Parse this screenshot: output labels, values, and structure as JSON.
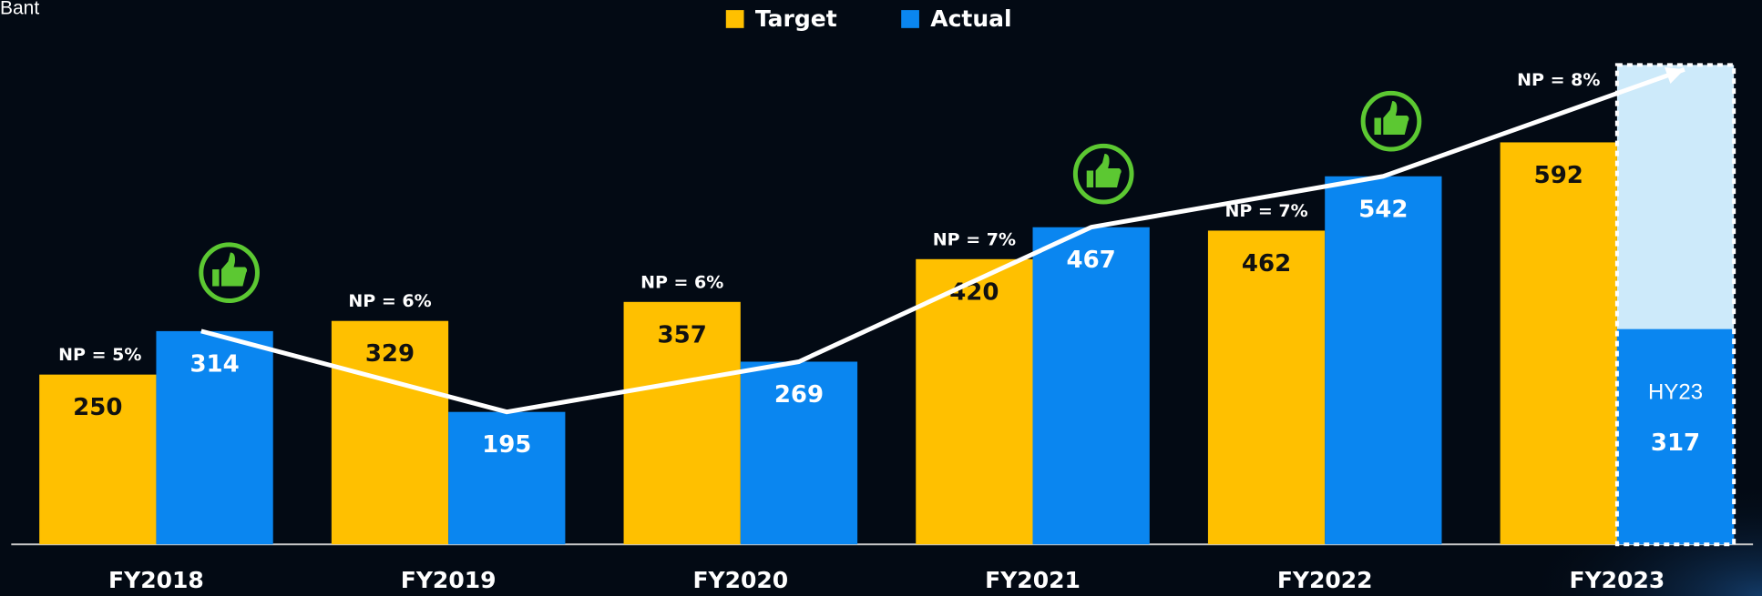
{
  "chart_data": {
    "type": "bar",
    "corner_text": "Bant",
    "categories": [
      "FY2018",
      "FY2019",
      "FY2020",
      "FY2021",
      "FY2022",
      "FY2023"
    ],
    "series": [
      {
        "name": "Target",
        "color": "#ffc000",
        "values": [
          250,
          329,
          357,
          420,
          462,
          592
        ]
      },
      {
        "name": "Actual",
        "color": "#0a86f0",
        "values": [
          314,
          195,
          269,
          467,
          542,
          317
        ]
      }
    ],
    "np_labels": [
      "NP = 5%",
      "NP = 6%",
      "NP = 6%",
      "NP = 7%",
      "NP = 7%",
      "NP = 8%"
    ],
    "half_year_label": "HY23",
    "dashed_box_value": 706,
    "dashed_box_color": "#cdeafa",
    "ylim": [
      0,
      800
    ],
    "legend": "top"
  }
}
